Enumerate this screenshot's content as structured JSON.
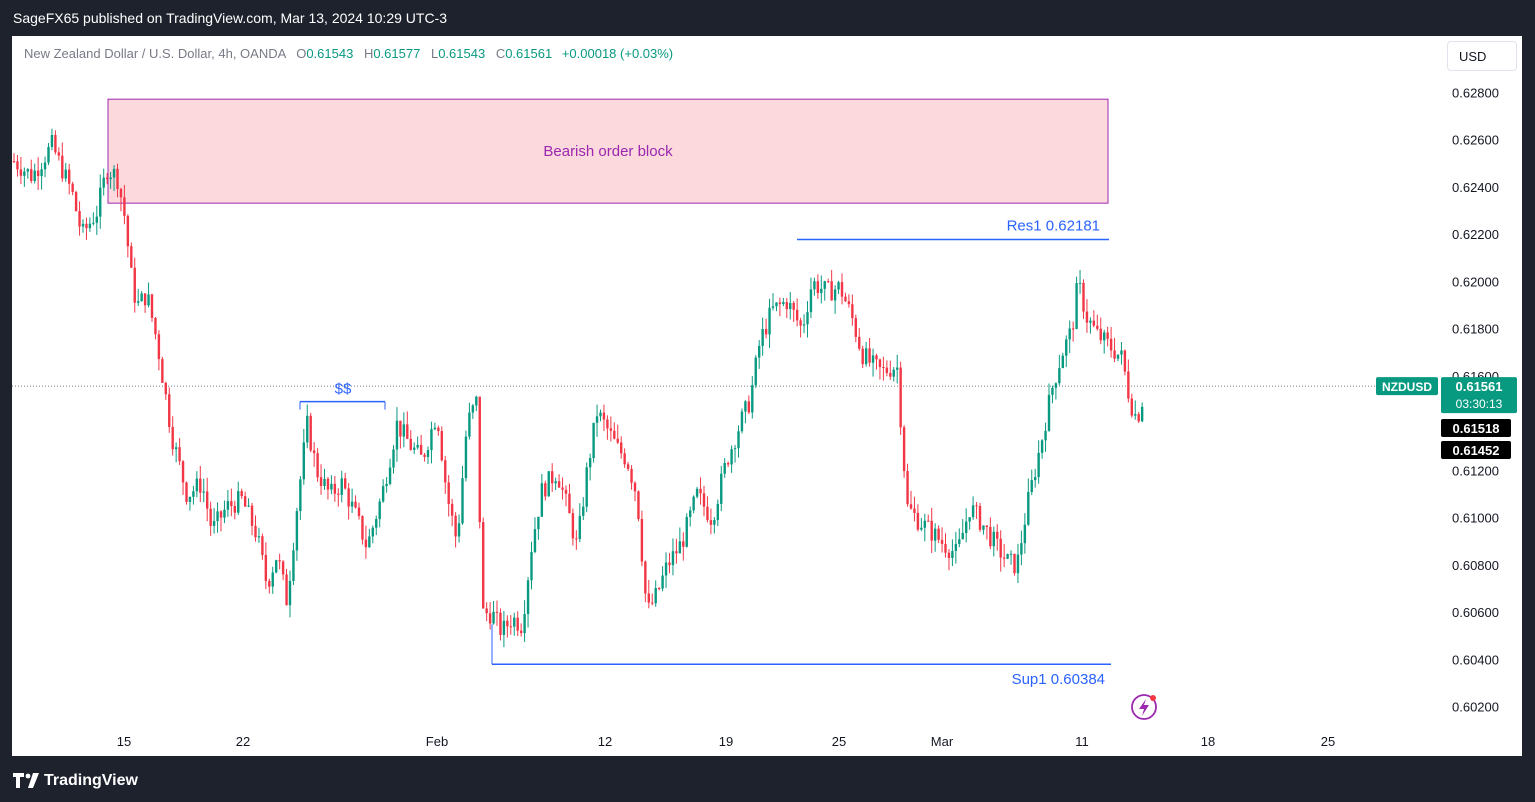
{
  "header": {
    "published_text": "SageFX65 published on TradingView.com, Mar 13, 2024 10:29 UTC-3"
  },
  "legend": {
    "symbol_desc": "New Zealand Dollar / U.S. Dollar, 4h, OANDA",
    "o_label": "O",
    "o_value": "0.61543",
    "h_label": "H",
    "h_value": "0.61577",
    "l_label": "L",
    "l_value": "0.61543",
    "c_label": "C",
    "c_value": "0.61561",
    "change": "+0.00018 (+0.03%)"
  },
  "currency_button": "USD",
  "footer": {
    "logo_text": "TradingView"
  },
  "colors": {
    "up": "#089981",
    "down": "#f23645",
    "line": "#2962ff",
    "block_fill": "#fbd9dc",
    "block_border": "#9c27b0"
  },
  "chart_data": {
    "type": "candlestick",
    "symbol": "NZDUSD",
    "timeframe": "4h",
    "ylim": [
      0.6011,
      0.6289
    ],
    "y_ticks": [
      "0.60200",
      "0.60400",
      "0.60600",
      "0.60800",
      "0.61000",
      "0.61200",
      "0.61400",
      "0.61600",
      "0.61800",
      "0.62000",
      "0.62200",
      "0.62400",
      "0.62600",
      "0.62800"
    ],
    "x_ticks": [
      "15",
      "22",
      "Feb",
      "12",
      "19",
      "25",
      "Mar",
      "11",
      "18",
      "25"
    ],
    "price_tags": {
      "symbol_label": "NZDUSD",
      "last_price": "0.61561",
      "countdown": "03:30:13",
      "tag2": "0.61518",
      "tag3": "0.61452"
    },
    "annotations": {
      "bearish_block_label": "Bearish order block",
      "bearish_block_range": [
        0.62335,
        0.62775
      ],
      "res_label": "Res1 0.62181",
      "res_value": 0.62181,
      "sup_label": "Sup1  0.60384",
      "sup_value": 0.60384,
      "liquidity_label": "$$",
      "liquidity_value": 0.61495
    },
    "close_path": [
      [
        0,
        0.6252
      ],
      [
        20,
        0.6245
      ],
      [
        40,
        0.6258
      ],
      [
        60,
        0.6238
      ],
      [
        70,
        0.622
      ],
      [
        85,
        0.623
      ],
      [
        95,
        0.6248
      ],
      [
        105,
        0.6245
      ],
      [
        112,
        0.623
      ],
      [
        120,
        0.62
      ],
      [
        125,
        0.619
      ],
      [
        135,
        0.6195
      ],
      [
        145,
        0.6175
      ],
      [
        160,
        0.6135
      ],
      [
        175,
        0.611
      ],
      [
        190,
        0.6115
      ],
      [
        200,
        0.6095
      ],
      [
        215,
        0.6105
      ],
      [
        230,
        0.6108
      ],
      [
        245,
        0.6093
      ],
      [
        255,
        0.6072
      ],
      [
        265,
        0.6085
      ],
      [
        275,
        0.6065
      ],
      [
        285,
        0.6105
      ],
      [
        295,
        0.614
      ],
      [
        305,
        0.612
      ],
      [
        318,
        0.611
      ],
      [
        330,
        0.6115
      ],
      [
        345,
        0.61
      ],
      [
        355,
        0.6088
      ],
      [
        370,
        0.611
      ],
      [
        385,
        0.614
      ],
      [
        400,
        0.613
      ],
      [
        410,
        0.6125
      ],
      [
        425,
        0.6145
      ],
      [
        435,
        0.611
      ],
      [
        445,
        0.609
      ],
      [
        455,
        0.614
      ],
      [
        465,
        0.615
      ],
      [
        470,
        0.606
      ],
      [
        480,
        0.606
      ],
      [
        490,
        0.6052
      ],
      [
        500,
        0.6058
      ],
      [
        510,
        0.6055
      ],
      [
        520,
        0.609
      ],
      [
        530,
        0.6112
      ],
      [
        545,
        0.612
      ],
      [
        555,
        0.6105
      ],
      [
        565,
        0.6088
      ],
      [
        575,
        0.612
      ],
      [
        585,
        0.6145
      ],
      [
        595,
        0.6138
      ],
      [
        605,
        0.613
      ],
      [
        615,
        0.6125
      ],
      [
        625,
        0.611
      ],
      [
        635,
        0.606
      ],
      [
        645,
        0.6068
      ],
      [
        655,
        0.608
      ],
      [
        670,
        0.609
      ],
      [
        685,
        0.611
      ],
      [
        700,
        0.61
      ],
      [
        715,
        0.6125
      ],
      [
        728,
        0.614
      ],
      [
        738,
        0.615
      ],
      [
        748,
        0.6175
      ],
      [
        760,
        0.6188
      ],
      [
        775,
        0.6192
      ],
      [
        790,
        0.618
      ],
      [
        800,
        0.62
      ],
      [
        815,
        0.6196
      ],
      [
        828,
        0.6198
      ],
      [
        840,
        0.6185
      ],
      [
        850,
        0.617
      ],
      [
        860,
        0.6165
      ],
      [
        870,
        0.6162
      ],
      [
        885,
        0.6165
      ],
      [
        895,
        0.6105
      ],
      [
        905,
        0.61
      ],
      [
        918,
        0.6095
      ],
      [
        930,
        0.609
      ],
      [
        945,
        0.6085
      ],
      [
        958,
        0.6105
      ],
      [
        970,
        0.6098
      ],
      [
        985,
        0.6088
      ],
      [
        995,
        0.6082
      ],
      [
        1005,
        0.608
      ],
      [
        1015,
        0.6105
      ],
      [
        1028,
        0.613
      ],
      [
        1040,
        0.6155
      ],
      [
        1050,
        0.617
      ],
      [
        1060,
        0.618
      ],
      [
        1066,
        0.62
      ],
      [
        1075,
        0.6185
      ],
      [
        1085,
        0.6178
      ],
      [
        1100,
        0.6172
      ],
      [
        1110,
        0.6168
      ],
      [
        1118,
        0.615
      ],
      [
        1125,
        0.6142
      ],
      [
        1130,
        0.615
      ],
      [
        1138,
        0.6155
      ],
      [
        1145,
        0.6156
      ]
    ]
  }
}
